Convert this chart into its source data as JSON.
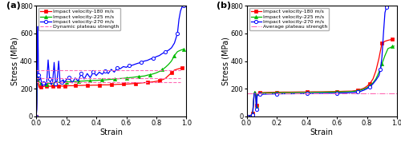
{
  "title_a": "(a)",
  "title_b": "(b)",
  "xlabel": "Strain",
  "ylabel": "Stress (MPa)",
  "xlim": [
    0.0,
    1.0
  ],
  "ylim": [
    0,
    800
  ],
  "yticks": [
    0,
    200,
    400,
    600,
    800
  ],
  "xticks": [
    0.0,
    0.2,
    0.4,
    0.6,
    0.8,
    1.0
  ],
  "legend_a": [
    "Impact velocity-180 m/s",
    "Impact velocity-225 m/s",
    "Impact velocity-270 m/s",
    "Dynamic plateau strength"
  ],
  "legend_b": [
    "Impact velocity-180 m/s",
    "Impact velocity-225 m/s",
    "Impact velocity-270 m/s",
    "Average plateau strength"
  ],
  "color_v180": "#FF0000",
  "color_v225": "#00BB00",
  "color_v270": "#0000FF",
  "color_plateau": "#FF69B4",
  "plateau_a_v180": 248,
  "plateau_a_v225": 278,
  "plateau_a_v270": 332,
  "plateau_b": 165,
  "lw": 0.9,
  "ms": 3.0
}
